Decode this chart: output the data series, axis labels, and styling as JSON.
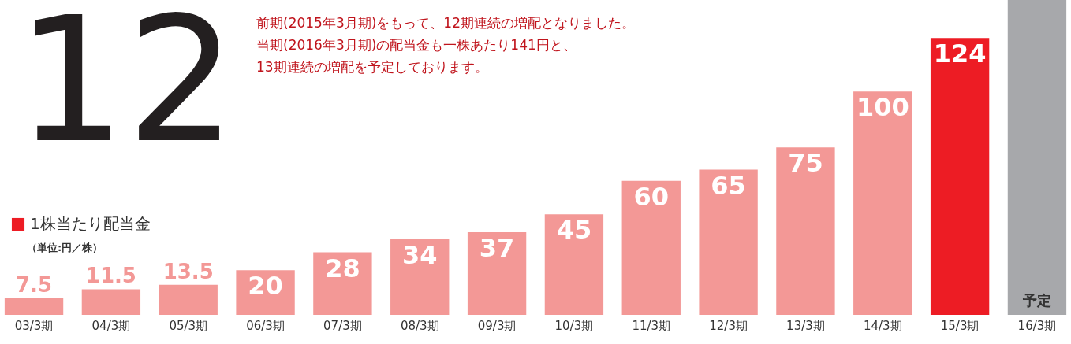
{
  "chart_data": {
    "type": "bar",
    "categories": [
      "03/3期",
      "04/3期",
      "05/3期",
      "06/3期",
      "07/3期",
      "08/3期",
      "09/3期",
      "10/3期",
      "11/3期",
      "12/3期",
      "13/3期",
      "14/3期",
      "15/3期",
      "16/3期"
    ],
    "series": [
      {
        "name": "1株当たり配当金",
        "color": "#ed1c24",
        "values": [
          7.5,
          11.5,
          13.5,
          20,
          28,
          34,
          37,
          45,
          60,
          65,
          75,
          100,
          124,
          null
        ],
        "value_labels": [
          "7.5",
          "11.5",
          "13.5",
          "20",
          "28",
          "34",
          "37",
          "45",
          "60",
          "65",
          "75",
          "100",
          "124",
          null
        ],
        "colors": [
          "#f39896",
          "#f39896",
          "#f39896",
          "#f39896",
          "#f39896",
          "#f39896",
          "#f39896",
          "#f39896",
          "#f39896",
          "#f39896",
          "#f39896",
          "#f39896",
          "#ed1c24",
          "#f39896"
        ]
      },
      {
        "name": "予定",
        "color": "#a7a8ab",
        "values": [
          null,
          null,
          null,
          null,
          null,
          null,
          null,
          null,
          null,
          null,
          null,
          null,
          null,
          141
        ]
      }
    ],
    "ylabel": "（単位:円／株）",
    "tick_labels": "x",
    "legend": "left",
    "annotations": [
      "12",
      "前期(2015年3月期)をもって、12期連続の増配となりました。",
      "当期(2016年3月期)の配当金も一株あたり141円と、",
      "13期連続の増配を予定しております。"
    ]
  }
}
